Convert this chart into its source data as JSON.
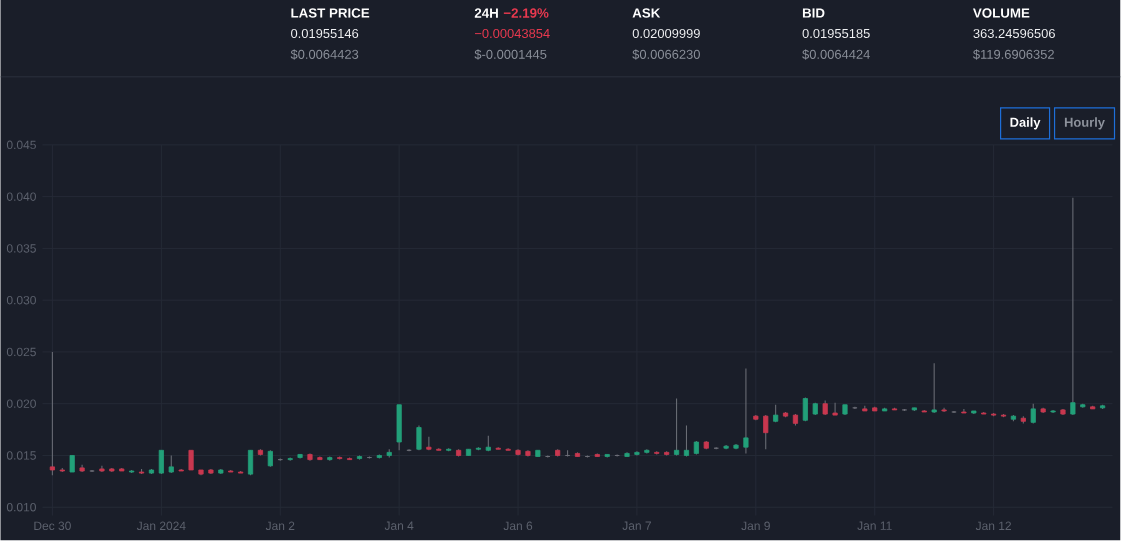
{
  "chart_data": [
    {
      "type": "other",
      "annotations": [
        "LAST PRICE",
        "0.01955146",
        "$0.0064423",
        "24H",
        "−2.19%",
        "−0.00043854",
        "$-0.0001445",
        "ASK",
        "0.02009999",
        "$0.0066230",
        "BID",
        "0.01955185",
        "$0.0064424",
        "VOLUME",
        "363.24596506",
        "$119.6906352"
      ]
    },
    {
      "type": "candlestick",
      "annotations": [
        "Daily",
        "Hourly"
      ],
      "categories": [
        "Dec 30",
        null,
        null,
        null,
        null,
        null,
        null,
        null,
        null,
        null,
        null,
        "Jan 2024",
        null,
        null,
        null,
        null,
        null,
        null,
        null,
        null,
        null,
        null,
        null,
        "Jan 2",
        null,
        null,
        null,
        null,
        null,
        null,
        null,
        null,
        null,
        null,
        null,
        "Jan 4",
        null,
        null,
        null,
        null,
        null,
        null,
        null,
        null,
        null,
        null,
        null,
        "Jan 6",
        null,
        null,
        null,
        null,
        null,
        null,
        null,
        null,
        null,
        null,
        null,
        "Jan 7",
        null,
        null,
        null,
        null,
        null,
        null,
        null,
        null,
        null,
        null,
        null,
        "Jan 9",
        null,
        null,
        null,
        null,
        null,
        null,
        null,
        null,
        null,
        null,
        null,
        "Jan 11",
        null,
        null,
        null,
        null,
        null,
        null,
        null,
        null,
        null,
        null,
        null,
        "Jan 12",
        null,
        null,
        null,
        null,
        null,
        null,
        null,
        null,
        null,
        null,
        null
      ],
      "ohlc": [
        [
          0.0139,
          0.025,
          0.0131,
          0.0136
        ],
        [
          0.0136,
          0.0138,
          0.0134,
          0.0135
        ],
        [
          0.0134,
          0.015,
          0.0134,
          0.015
        ],
        [
          0.0138,
          0.0141,
          0.0134,
          0.0135
        ],
        [
          0.0135,
          0.0136,
          0.0134,
          0.0135
        ],
        [
          0.0137,
          0.014,
          0.0134,
          0.0135
        ],
        [
          0.0137,
          0.0138,
          0.0134,
          0.0135
        ],
        [
          0.0137,
          0.0138,
          0.0135,
          0.0135
        ],
        [
          0.0134,
          0.0136,
          0.0133,
          0.0135
        ],
        [
          0.0134,
          0.0137,
          0.0132,
          0.0133
        ],
        [
          0.0133,
          0.0137,
          0.0132,
          0.0136
        ],
        [
          0.0133,
          0.0155,
          0.0132,
          0.0155
        ],
        [
          0.0134,
          0.015,
          0.0133,
          0.0139
        ],
        [
          0.0136,
          0.0137,
          0.0135,
          0.0135
        ],
        [
          0.0155,
          0.0155,
          0.0136,
          0.0136
        ],
        [
          0.0136,
          0.0136,
          0.0131,
          0.0132
        ],
        [
          0.0136,
          0.0137,
          0.0132,
          0.0133
        ],
        [
          0.0133,
          0.0137,
          0.0132,
          0.0136
        ],
        [
          0.0135,
          0.0136,
          0.0134,
          0.0134
        ],
        [
          0.0134,
          0.0135,
          0.0133,
          0.0133
        ],
        [
          0.0132,
          0.0155,
          0.0131,
          0.0155
        ],
        [
          0.0155,
          0.0156,
          0.015,
          0.0151
        ],
        [
          0.014,
          0.0155,
          0.0139,
          0.0154
        ],
        [
          0.0146,
          0.0147,
          0.0145,
          0.0146
        ],
        [
          0.0146,
          0.0148,
          0.0145,
          0.0147
        ],
        [
          0.0148,
          0.0151,
          0.0147,
          0.0151
        ],
        [
          0.0151,
          0.0152,
          0.0145,
          0.0146
        ],
        [
          0.0148,
          0.0149,
          0.0146,
          0.0146
        ],
        [
          0.0146,
          0.0149,
          0.0145,
          0.0148
        ],
        [
          0.0148,
          0.0149,
          0.0146,
          0.0147
        ],
        [
          0.0147,
          0.0148,
          0.0146,
          0.0146
        ],
        [
          0.0147,
          0.015,
          0.0146,
          0.0149
        ],
        [
          0.0148,
          0.0149,
          0.0147,
          0.0148
        ],
        [
          0.0148,
          0.0151,
          0.0147,
          0.015
        ],
        [
          0.015,
          0.0156,
          0.0148,
          0.0153
        ],
        [
          0.0163,
          0.0199,
          0.0155,
          0.0199
        ],
        [
          0.0155,
          0.0156,
          0.0154,
          0.0155
        ],
        [
          0.0156,
          0.0179,
          0.0155,
          0.0177
        ],
        [
          0.0158,
          0.0168,
          0.0155,
          0.0156
        ],
        [
          0.0156,
          0.0157,
          0.0155,
          0.0155
        ],
        [
          0.0155,
          0.0157,
          0.0154,
          0.0156
        ],
        [
          0.0155,
          0.0156,
          0.0149,
          0.015
        ],
        [
          0.015,
          0.0156,
          0.015,
          0.0156
        ],
        [
          0.0156,
          0.0158,
          0.0155,
          0.0157
        ],
        [
          0.0155,
          0.0169,
          0.0154,
          0.0158
        ],
        [
          0.0157,
          0.0158,
          0.0156,
          0.0156
        ],
        [
          0.0156,
          0.0157,
          0.0155,
          0.0155
        ],
        [
          0.0155,
          0.0156,
          0.015,
          0.0151
        ],
        [
          0.0154,
          0.0155,
          0.0149,
          0.015
        ],
        [
          0.0149,
          0.0155,
          0.0149,
          0.0155
        ],
        [
          0.0149,
          0.015,
          0.0148,
          0.0149
        ],
        [
          0.0155,
          0.0156,
          0.0149,
          0.015
        ],
        [
          0.015,
          0.0155,
          0.0149,
          0.015
        ],
        [
          0.0152,
          0.0153,
          0.0149,
          0.0149
        ],
        [
          0.0149,
          0.015,
          0.0148,
          0.0149
        ],
        [
          0.0151,
          0.0152,
          0.0149,
          0.0149
        ],
        [
          0.0149,
          0.0151,
          0.0148,
          0.0151
        ],
        [
          0.015,
          0.0151,
          0.0149,
          0.015
        ],
        [
          0.0149,
          0.0153,
          0.0149,
          0.0152
        ],
        [
          0.0151,
          0.0154,
          0.015,
          0.0153
        ],
        [
          0.0153,
          0.0156,
          0.0152,
          0.0155
        ],
        [
          0.0153,
          0.0154,
          0.0151,
          0.0152
        ],
        [
          0.0153,
          0.0154,
          0.015,
          0.0151
        ],
        [
          0.0151,
          0.0205,
          0.015,
          0.0155
        ],
        [
          0.015,
          0.0179,
          0.0149,
          0.0155
        ],
        [
          0.0152,
          0.0164,
          0.0151,
          0.0163
        ],
        [
          0.0163,
          0.0164,
          0.0156,
          0.0157
        ],
        [
          0.0157,
          0.0158,
          0.0156,
          0.0157
        ],
        [
          0.0157,
          0.016,
          0.0156,
          0.0159
        ],
        [
          0.0157,
          0.0161,
          0.0156,
          0.016
        ],
        [
          0.0158,
          0.0234,
          0.0152,
          0.0167
        ],
        [
          0.0188,
          0.0189,
          0.0184,
          0.0185
        ],
        [
          0.0188,
          0.0189,
          0.0156,
          0.0172
        ],
        [
          0.0183,
          0.0199,
          0.0182,
          0.0189
        ],
        [
          0.0191,
          0.0192,
          0.0187,
          0.0188
        ],
        [
          0.0189,
          0.019,
          0.0179,
          0.0181
        ],
        [
          0.0184,
          0.0206,
          0.0183,
          0.0205
        ],
        [
          0.019,
          0.0201,
          0.0189,
          0.02
        ],
        [
          0.02,
          0.0203,
          0.0189,
          0.019
        ],
        [
          0.0191,
          0.0201,
          0.0189,
          0.0189
        ],
        [
          0.019,
          0.0199,
          0.0189,
          0.0199
        ],
        [
          0.0196,
          0.0197,
          0.0195,
          0.0196
        ],
        [
          0.0195,
          0.0198,
          0.0193,
          0.0193
        ],
        [
          0.0196,
          0.0197,
          0.0193,
          0.0193
        ],
        [
          0.0193,
          0.0196,
          0.0193,
          0.0195
        ],
        [
          0.0195,
          0.0196,
          0.0194,
          0.0194
        ],
        [
          0.0194,
          0.0195,
          0.0193,
          0.0194
        ],
        [
          0.0194,
          0.0196,
          0.0193,
          0.0196
        ],
        [
          0.0193,
          0.0194,
          0.0192,
          0.0192
        ],
        [
          0.0192,
          0.0239,
          0.0191,
          0.0194
        ],
        [
          0.0194,
          0.0196,
          0.0192,
          0.0193
        ],
        [
          0.0192,
          0.0193,
          0.0191,
          0.0192
        ],
        [
          0.0192,
          0.0195,
          0.0191,
          0.0191
        ],
        [
          0.0191,
          0.0193,
          0.019,
          0.0193
        ],
        [
          0.0191,
          0.0192,
          0.019,
          0.019
        ],
        [
          0.019,
          0.0191,
          0.0188,
          0.0189
        ],
        [
          0.0189,
          0.019,
          0.0187,
          0.0188
        ],
        [
          0.0185,
          0.0189,
          0.0183,
          0.0188
        ],
        [
          0.0186,
          0.0188,
          0.0181,
          0.0183
        ],
        [
          0.0182,
          0.02,
          0.0181,
          0.0195
        ],
        [
          0.0195,
          0.0196,
          0.0191,
          0.0192
        ],
        [
          0.0192,
          0.0194,
          0.0191,
          0.0193
        ],
        [
          0.0194,
          0.0195,
          0.0189,
          0.019
        ],
        [
          0.019,
          0.0399,
          0.0189,
          0.0201
        ],
        [
          0.0197,
          0.02,
          0.0196,
          0.0199
        ],
        [
          0.0197,
          0.0198,
          0.0195,
          0.0195
        ],
        [
          0.0196,
          0.0199,
          0.0195,
          0.0198
        ]
      ],
      "colors": [
        "#c9374f",
        "#c9374f",
        "#22a079",
        "#c9374f",
        "#6e7079",
        "#c9374f",
        "#c9374f",
        "#c9374f",
        "#22a079",
        "#c9374f",
        "#22a079",
        "#22a079",
        "#22a079",
        "#c9374f",
        "#c9374f",
        "#c9374f",
        "#c9374f",
        "#22a079",
        "#c9374f",
        "#c9374f",
        "#22a079",
        "#c9374f",
        "#22a079",
        "#6e7079",
        "#22a079",
        "#22a079",
        "#c9374f",
        "#c9374f",
        "#22a079",
        "#c9374f",
        "#c9374f",
        "#22a079",
        "#6e7079",
        "#22a079",
        "#22a079",
        "#22a079",
        "#6e7079",
        "#22a079",
        "#c9374f",
        "#c9374f",
        "#22a079",
        "#c9374f",
        "#22a079",
        "#22a079",
        "#22a079",
        "#c9374f",
        "#c9374f",
        "#c9374f",
        "#c9374f",
        "#22a079",
        "#6e7079",
        "#c9374f",
        "#6e7079",
        "#c9374f",
        "#6e7079",
        "#c9374f",
        "#22a079",
        "#6e7079",
        "#22a079",
        "#22a079",
        "#22a079",
        "#c9374f",
        "#c9374f",
        "#22a079",
        "#22a079",
        "#22a079",
        "#c9374f",
        "#6e7079",
        "#22a079",
        "#22a079",
        "#22a079",
        "#c9374f",
        "#c9374f",
        "#22a079",
        "#c9374f",
        "#c9374f",
        "#22a079",
        "#22a079",
        "#c9374f",
        "#c9374f",
        "#22a079",
        "#6e7079",
        "#c9374f",
        "#c9374f",
        "#22a079",
        "#c9374f",
        "#6e7079",
        "#22a079",
        "#c9374f",
        "#22a079",
        "#c9374f",
        "#6e7079",
        "#c9374f",
        "#22a079",
        "#c9374f",
        "#c9374f",
        "#c9374f",
        "#22a079",
        "#c9374f",
        "#22a079",
        "#c9374f",
        "#22a079",
        "#c9374f",
        "#22a079",
        "#22a079",
        "#c9374f",
        "#22a079"
      ],
      "ylim": [
        0.0092,
        0.045
      ],
      "yticks": [
        {
          "value": 0.01,
          "label": "0.010"
        },
        0.015,
        {
          "value": 0.02,
          "label": "0.020"
        },
        0.025,
        {
          "value": 0.03,
          "label": "0.030"
        },
        0.035,
        {
          "value": 0.04,
          "label": "0.040"
        },
        0.045
      ],
      "grid": true
    }
  ]
}
